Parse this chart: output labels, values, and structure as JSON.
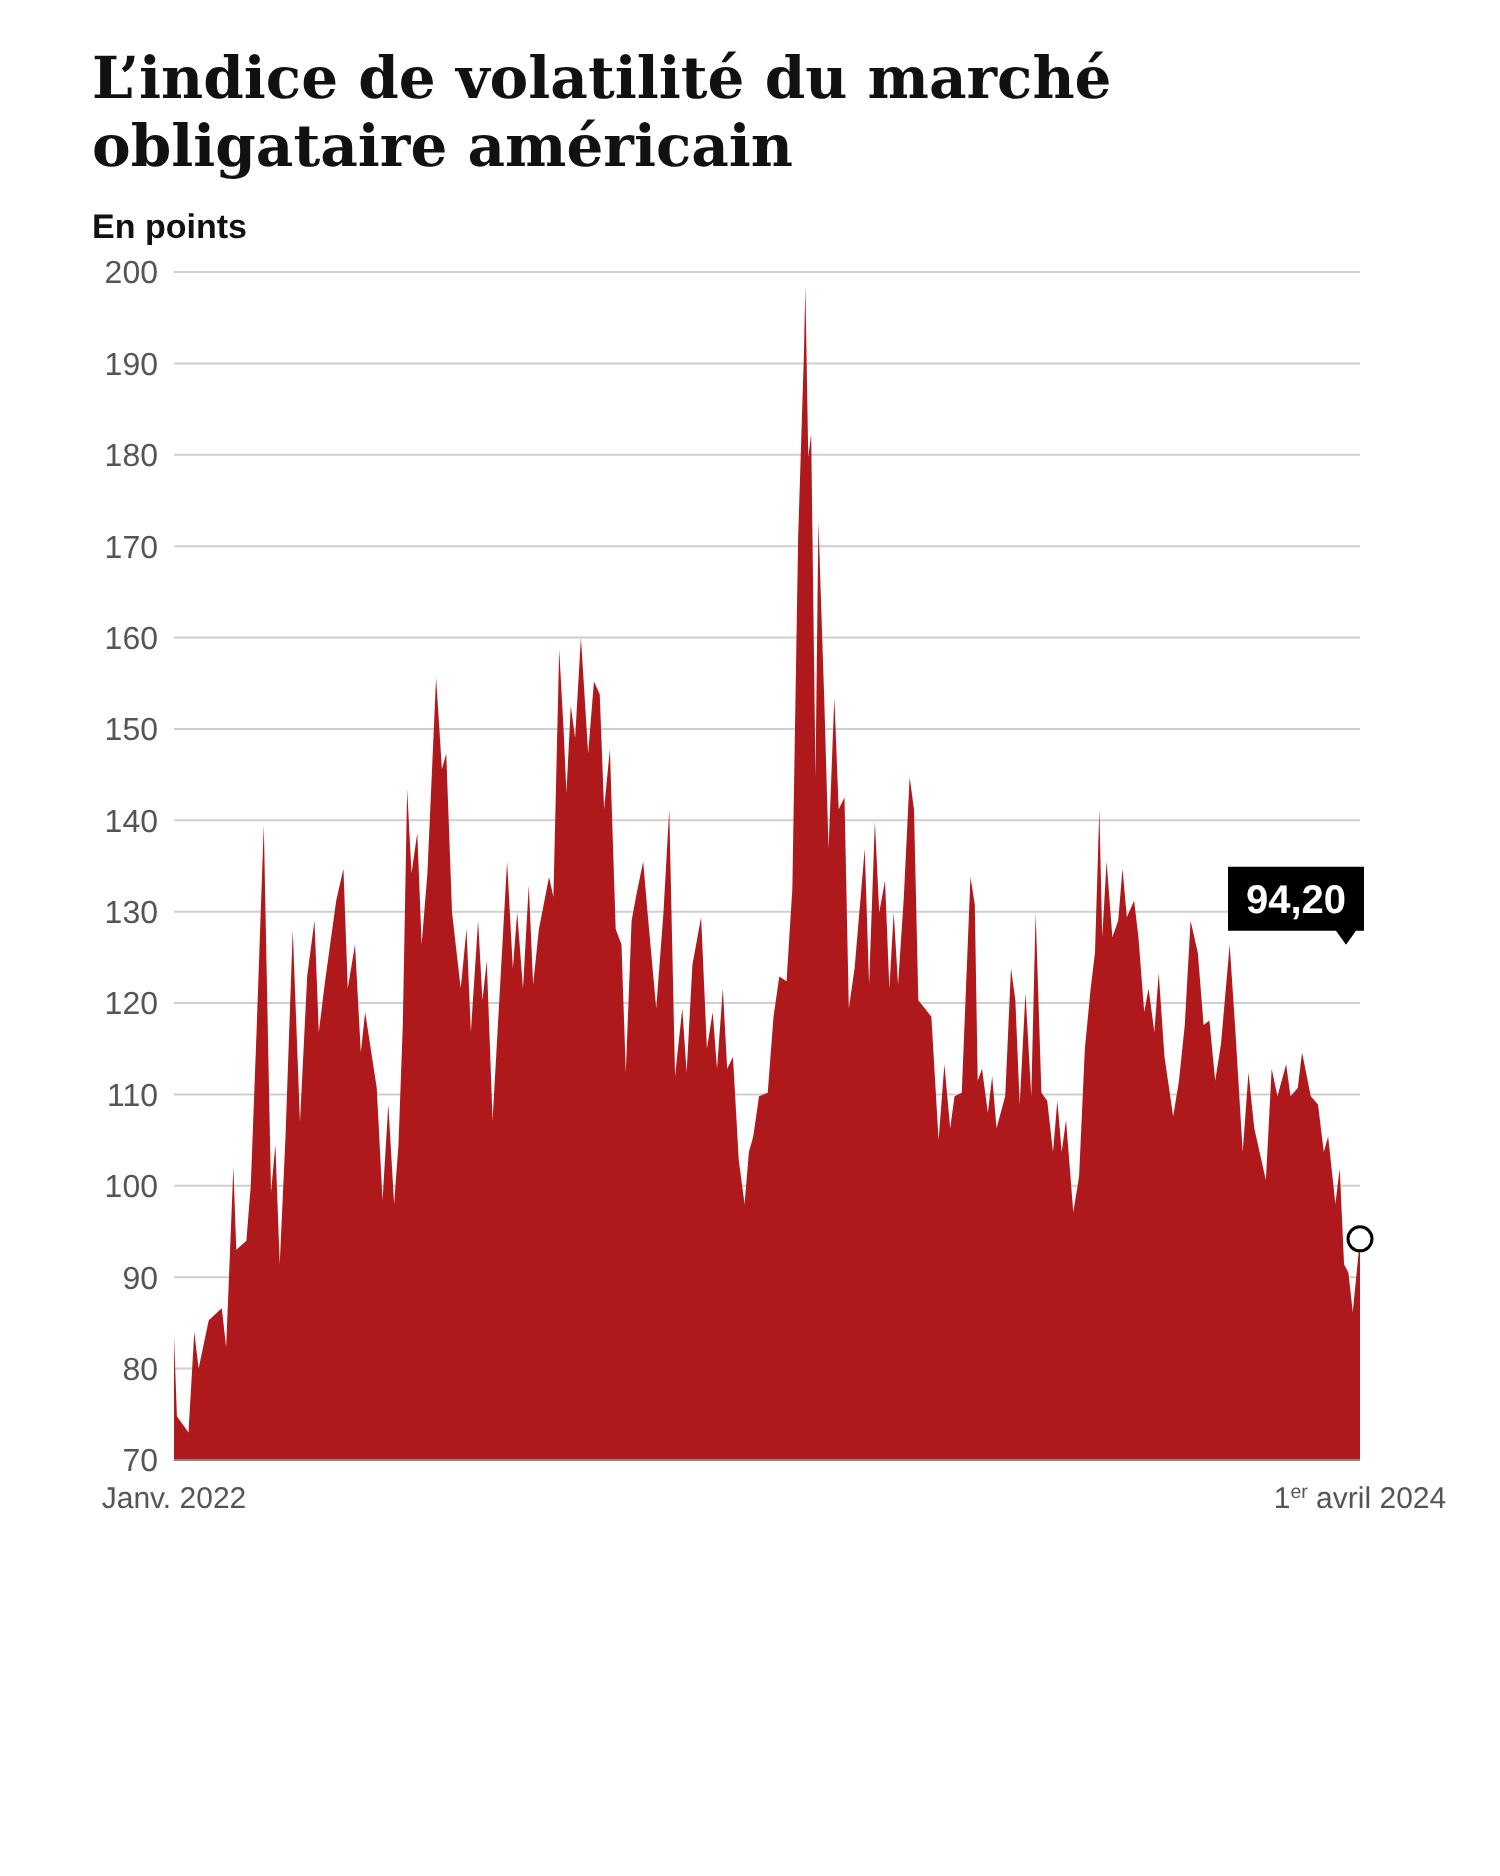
{
  "chart_data": {
    "type": "area",
    "title": "L’indice de volatilité du marché obligataire américain",
    "ylabel": "En points",
    "x": [
      "2022-01-03",
      "2022-01-05",
      "2022-01-13",
      "2022-01-17",
      "2022-01-20",
      "2022-01-27",
      "2022-02-05",
      "2022-02-08",
      "2022-02-13",
      "2022-02-15",
      "2022-02-22",
      "2022-02-25",
      "2022-03-01",
      "2022-03-06",
      "2022-03-11",
      "2022-03-14",
      "2022-03-17",
      "2022-03-21",
      "2022-03-26",
      "2022-03-31",
      "2022-04-05",
      "2022-04-10",
      "2022-04-13",
      "2022-04-17",
      "2022-04-25",
      "2022-04-30",
      "2022-05-03",
      "2022-05-08",
      "2022-05-12",
      "2022-05-15",
      "2022-05-23",
      "2022-05-27",
      "2022-05-31",
      "2022-06-04",
      "2022-06-07",
      "2022-06-10",
      "2022-06-13",
      "2022-06-16",
      "2022-06-20",
      "2022-06-23",
      "2022-06-27",
      "2022-07-03",
      "2022-07-07",
      "2022-07-10",
      "2022-07-14",
      "2022-07-20",
      "2022-07-24",
      "2022-07-27",
      "2022-08-01",
      "2022-08-04",
      "2022-08-07",
      "2022-08-11",
      "2022-08-21",
      "2022-08-25",
      "2022-08-28",
      "2022-09-01",
      "2022-09-05",
      "2022-09-08",
      "2022-09-12",
      "2022-09-19",
      "2022-09-22",
      "2022-09-26",
      "2022-09-29",
      "2022-10-01",
      "2022-10-04",
      "2022-10-07",
      "2022-10-11",
      "2022-10-16",
      "2022-10-20",
      "2022-10-24",
      "2022-10-27",
      "2022-10-31",
      "2022-11-04",
      "2022-11-08",
      "2022-11-11",
      "2022-11-15",
      "2022-11-18",
      "2022-11-23",
      "2022-11-26",
      "2022-12-02",
      "2022-12-07",
      "2022-12-11",
      "2022-12-15",
      "2022-12-20",
      "2022-12-23",
      "2022-12-27",
      "2023-01-02",
      "2023-01-06",
      "2023-01-10",
      "2023-01-13",
      "2023-01-17",
      "2023-01-20",
      "2023-01-24",
      "2023-01-28",
      "2023-02-01",
      "2023-02-04",
      "2023-02-07",
      "2023-02-11",
      "2023-02-17",
      "2023-02-21",
      "2023-02-25",
      "2023-03-02",
      "2023-03-06",
      "2023-03-10",
      "2023-03-14",
      "2023-03-15",
      "2023-03-17",
      "2023-03-19",
      "2023-03-22",
      "2023-03-24",
      "2023-03-28",
      "2023-03-31",
      "2023-04-04",
      "2023-04-07",
      "2023-04-11",
      "2023-04-14",
      "2023-04-18",
      "2023-04-25",
      "2023-04-28",
      "2023-05-02",
      "2023-05-05",
      "2023-05-09",
      "2023-05-12",
      "2023-05-15",
      "2023-05-18",
      "2023-05-22",
      "2023-05-26",
      "2023-05-29",
      "2023-06-01",
      "2023-06-10",
      "2023-06-15",
      "2023-06-19",
      "2023-06-23",
      "2023-06-26",
      "2023-07-01",
      "2023-07-07",
      "2023-07-10",
      "2023-07-12",
      "2023-07-15",
      "2023-07-19",
      "2023-07-22",
      "2023-07-25",
      "2023-07-31",
      "2023-08-04",
      "2023-08-07",
      "2023-08-10",
      "2023-08-14",
      "2023-08-18",
      "2023-08-21",
      "2023-08-25",
      "2023-08-29",
      "2023-09-02",
      "2023-09-05",
      "2023-09-08",
      "2023-09-11",
      "2023-09-16",
      "2023-09-20",
      "2023-09-24",
      "2023-09-28",
      "2023-10-01",
      "2023-10-04",
      "2023-10-06",
      "2023-10-09",
      "2023-10-13",
      "2023-10-17",
      "2023-10-20",
      "2023-10-23",
      "2023-10-28",
      "2023-10-31",
      "2023-11-04",
      "2023-11-07",
      "2023-11-11",
      "2023-11-14",
      "2023-11-18",
      "2023-11-24",
      "2023-11-28",
      "2023-12-02",
      "2023-12-06",
      "2023-12-11",
      "2023-12-15",
      "2023-12-19",
      "2023-12-23",
      "2023-12-27",
      "2024-01-02",
      "2024-01-06",
      "2024-01-11",
      "2024-01-15",
      "2024-01-19",
      "2024-01-27",
      "2024-01-31",
      "2024-02-04",
      "2024-02-10",
      "2024-02-13",
      "2024-02-18",
      "2024-02-21",
      "2024-02-27",
      "2024-03-03",
      "2024-03-07",
      "2024-03-10",
      "2024-03-15",
      "2024-03-18",
      "2024-03-21",
      "2024-03-24",
      "2024-03-27",
      "2024-04-01"
    ],
    "series": [
      {
        "color": "#b0191c",
        "values": [
          83.6,
          74.8,
          73,
          84,
          80,
          85.3,
          86.6,
          82.3,
          102,
          93,
          94,
          100,
          116.8,
          139.5,
          99.3,
          104.5,
          91.4,
          105.4,
          128,
          107,
          123,
          129,
          116.8,
          122,
          131.2,
          134.7,
          121.6,
          126.4,
          114.6,
          119,
          110.7,
          98.4,
          108.9,
          98,
          104.5,
          117.6,
          143.4,
          134.2,
          138.6,
          126.4,
          134.2,
          155.6,
          145.6,
          147.3,
          129.9,
          121.6,
          128.1,
          116.8,
          129,
          120.3,
          124.6,
          107.2,
          135.5,
          123.8,
          129.9,
          121.6,
          132.9,
          122,
          128.1,
          133.8,
          131.6,
          158.7,
          150,
          143,
          152.5,
          149,
          160,
          147.3,
          155.2,
          153.8,
          141.2,
          147.8,
          128.1,
          126.4,
          112.4,
          129,
          131.6,
          135.5,
          129.9,
          119.4,
          129.9,
          141.2,
          112,
          119.4,
          112.4,
          124.2,
          129.4,
          115,
          119,
          112.8,
          121.6,
          112.8,
          114.1,
          102.8,
          98,
          103.7,
          105.4,
          109.8,
          110.2,
          118.5,
          122.9,
          122.4,
          132.5,
          170.9,
          191,
          198.4,
          179.7,
          182.3,
          144.7,
          172.7,
          153.4,
          136.9,
          153.4,
          141.2,
          142.5,
          119.4,
          123.8,
          136.9,
          122,
          139.9,
          129.9,
          133.4,
          121.6,
          129.9,
          122,
          131.6,
          144.7,
          141.2,
          120.3,
          118.5,
          105,
          113.3,
          106.3,
          109.8,
          110.2,
          133.8,
          130.8,
          111.5,
          112.8,
          108,
          112,
          106.3,
          109.8,
          123.8,
          120.3,
          108.9,
          121.1,
          109.8,
          129.9,
          110.2,
          109.3,
          103.7,
          109.3,
          103.7,
          107.2,
          97.1,
          101,
          115,
          121.6,
          125.5,
          141.2,
          127.2,
          135.5,
          127.2,
          129,
          134.7,
          129.4,
          131.2,
          127.2,
          119,
          121.6,
          116.8,
          123.3,
          114.1,
          107.6,
          111.5,
          117.6,
          129,
          125.5,
          117.6,
          118.1,
          111.5,
          115.5,
          126.4,
          116.8,
          103.7,
          112.4,
          106.3,
          100.6,
          112.8,
          109.8,
          113.3,
          109.8,
          110.7,
          114.6,
          109.8,
          108.9,
          103.7,
          105.4,
          98,
          101.9,
          91.4,
          90.5,
          86.2,
          94.2
        ]
      }
    ],
    "xlim": [
      "2022-01-03",
      "2024-04-01"
    ],
    "xticks": [
      {
        "value": "2022-01-03",
        "label": "Janv. 2022"
      },
      {
        "value": "2024-04-01",
        "label": "1$^{er}$ avril 2024"
      }
    ],
    "ylim": [
      70,
      200
    ],
    "yticks": [
      70,
      80,
      90,
      100,
      110,
      120,
      130,
      140,
      150,
      160,
      170,
      180,
      190,
      200
    ],
    "grid": "y",
    "legend": false,
    "annotations": [
      "94,20"
    ]
  }
}
